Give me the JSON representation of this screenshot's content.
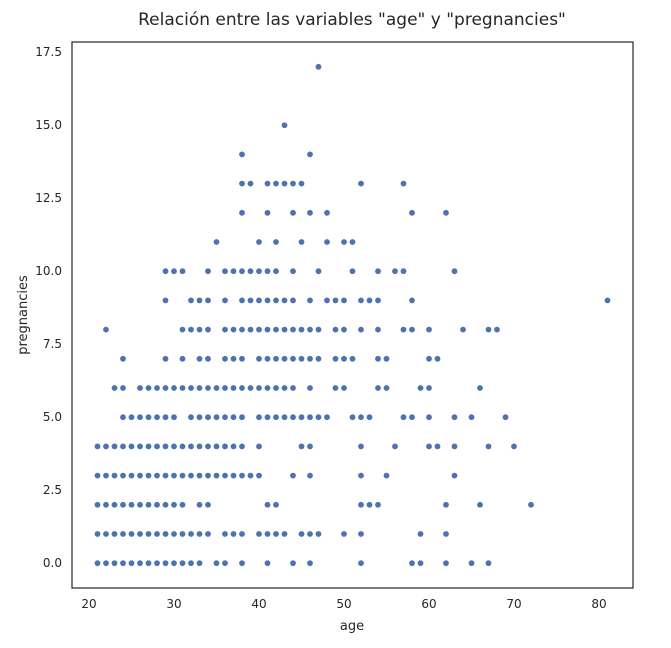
{
  "chart_data": {
    "type": "scatter",
    "title": "Relación entre las variables \"age\" y \"pregnancies\"",
    "xlabel": "age",
    "ylabel": "pregnancies",
    "xlim": [
      18,
      84
    ],
    "ylim": [
      -0.85,
      17.85
    ],
    "xticks": [
      20,
      30,
      40,
      50,
      60,
      70,
      80
    ],
    "xtick_labels": [
      "20",
      "30",
      "40",
      "50",
      "60",
      "70",
      "80"
    ],
    "yticks": [
      0,
      2.5,
      5,
      7.5,
      10,
      12.5,
      15,
      17.5
    ],
    "ytick_labels": [
      "0.0",
      "2.5",
      "5.0",
      "7.5",
      "10.0",
      "12.5",
      "15.0",
      "17.5"
    ],
    "grid": false,
    "marker_color": "#4c72b0",
    "points": [
      [
        21,
        0
      ],
      [
        22,
        0
      ],
      [
        23,
        0
      ],
      [
        24,
        0
      ],
      [
        25,
        0
      ],
      [
        26,
        0
      ],
      [
        27,
        0
      ],
      [
        28,
        0
      ],
      [
        29,
        0
      ],
      [
        30,
        0
      ],
      [
        31,
        0
      ],
      [
        32,
        0
      ],
      [
        33,
        0
      ],
      [
        35,
        0
      ],
      [
        36,
        0
      ],
      [
        38,
        0
      ],
      [
        41,
        0
      ],
      [
        44,
        0
      ],
      [
        46,
        0
      ],
      [
        52,
        0
      ],
      [
        58,
        0
      ],
      [
        59,
        0
      ],
      [
        62,
        0
      ],
      [
        65,
        0
      ],
      [
        67,
        0
      ],
      [
        21,
        1
      ],
      [
        22,
        1
      ],
      [
        23,
        1
      ],
      [
        24,
        1
      ],
      [
        25,
        1
      ],
      [
        26,
        1
      ],
      [
        27,
        1
      ],
      [
        28,
        1
      ],
      [
        29,
        1
      ],
      [
        30,
        1
      ],
      [
        31,
        1
      ],
      [
        32,
        1
      ],
      [
        33,
        1
      ],
      [
        34,
        1
      ],
      [
        36,
        1
      ],
      [
        37,
        1
      ],
      [
        38,
        1
      ],
      [
        40,
        1
      ],
      [
        41,
        1
      ],
      [
        42,
        1
      ],
      [
        43,
        1
      ],
      [
        45,
        1
      ],
      [
        46,
        1
      ],
      [
        47,
        1
      ],
      [
        50,
        1
      ],
      [
        52,
        1
      ],
      [
        59,
        1
      ],
      [
        62,
        1
      ],
      [
        21,
        2
      ],
      [
        22,
        2
      ],
      [
        23,
        2
      ],
      [
        24,
        2
      ],
      [
        25,
        2
      ],
      [
        26,
        2
      ],
      [
        27,
        2
      ],
      [
        28,
        2
      ],
      [
        29,
        2
      ],
      [
        30,
        2
      ],
      [
        31,
        2
      ],
      [
        33,
        2
      ],
      [
        34,
        2
      ],
      [
        41,
        2
      ],
      [
        42,
        2
      ],
      [
        52,
        2
      ],
      [
        53,
        2
      ],
      [
        54,
        2
      ],
      [
        62,
        2
      ],
      [
        66,
        2
      ],
      [
        72,
        2
      ],
      [
        21,
        3
      ],
      [
        22,
        3
      ],
      [
        23,
        3
      ],
      [
        24,
        3
      ],
      [
        25,
        3
      ],
      [
        26,
        3
      ],
      [
        27,
        3
      ],
      [
        28,
        3
      ],
      [
        29,
        3
      ],
      [
        30,
        3
      ],
      [
        31,
        3
      ],
      [
        32,
        3
      ],
      [
        33,
        3
      ],
      [
        34,
        3
      ],
      [
        35,
        3
      ],
      [
        36,
        3
      ],
      [
        37,
        3
      ],
      [
        38,
        3
      ],
      [
        39,
        3
      ],
      [
        40,
        3
      ],
      [
        44,
        3
      ],
      [
        46,
        3
      ],
      [
        52,
        3
      ],
      [
        55,
        3
      ],
      [
        63,
        3
      ],
      [
        21,
        4
      ],
      [
        22,
        4
      ],
      [
        23,
        4
      ],
      [
        24,
        4
      ],
      [
        25,
        4
      ],
      [
        26,
        4
      ],
      [
        27,
        4
      ],
      [
        28,
        4
      ],
      [
        29,
        4
      ],
      [
        30,
        4
      ],
      [
        31,
        4
      ],
      [
        32,
        4
      ],
      [
        33,
        4
      ],
      [
        34,
        4
      ],
      [
        35,
        4
      ],
      [
        36,
        4
      ],
      [
        37,
        4
      ],
      [
        38,
        4
      ],
      [
        40,
        4
      ],
      [
        45,
        4
      ],
      [
        46,
        4
      ],
      [
        52,
        4
      ],
      [
        56,
        4
      ],
      [
        60,
        4
      ],
      [
        61,
        4
      ],
      [
        63,
        4
      ],
      [
        67,
        4
      ],
      [
        70,
        4
      ],
      [
        24,
        5
      ],
      [
        25,
        5
      ],
      [
        26,
        5
      ],
      [
        27,
        5
      ],
      [
        28,
        5
      ],
      [
        29,
        5
      ],
      [
        30,
        5
      ],
      [
        32,
        5
      ],
      [
        33,
        5
      ],
      [
        34,
        5
      ],
      [
        35,
        5
      ],
      [
        36,
        5
      ],
      [
        37,
        5
      ],
      [
        38,
        5
      ],
      [
        40,
        5
      ],
      [
        41,
        5
      ],
      [
        42,
        5
      ],
      [
        43,
        5
      ],
      [
        44,
        5
      ],
      [
        45,
        5
      ],
      [
        46,
        5
      ],
      [
        47,
        5
      ],
      [
        48,
        5
      ],
      [
        51,
        5
      ],
      [
        52,
        5
      ],
      [
        53,
        5
      ],
      [
        57,
        5
      ],
      [
        58,
        5
      ],
      [
        60,
        5
      ],
      [
        63,
        5
      ],
      [
        65,
        5
      ],
      [
        69,
        5
      ],
      [
        23,
        6
      ],
      [
        24,
        6
      ],
      [
        26,
        6
      ],
      [
        27,
        6
      ],
      [
        28,
        6
      ],
      [
        29,
        6
      ],
      [
        30,
        6
      ],
      [
        31,
        6
      ],
      [
        32,
        6
      ],
      [
        33,
        6
      ],
      [
        34,
        6
      ],
      [
        35,
        6
      ],
      [
        36,
        6
      ],
      [
        37,
        6
      ],
      [
        38,
        6
      ],
      [
        39,
        6
      ],
      [
        40,
        6
      ],
      [
        41,
        6
      ],
      [
        42,
        6
      ],
      [
        43,
        6
      ],
      [
        44,
        6
      ],
      [
        46,
        6
      ],
      [
        49,
        6
      ],
      [
        50,
        6
      ],
      [
        54,
        6
      ],
      [
        55,
        6
      ],
      [
        59,
        6
      ],
      [
        60,
        6
      ],
      [
        66,
        6
      ],
      [
        24,
        7
      ],
      [
        29,
        7
      ],
      [
        31,
        7
      ],
      [
        33,
        7
      ],
      [
        34,
        7
      ],
      [
        36,
        7
      ],
      [
        37,
        7
      ],
      [
        38,
        7
      ],
      [
        40,
        7
      ],
      [
        41,
        7
      ],
      [
        42,
        7
      ],
      [
        43,
        7
      ],
      [
        44,
        7
      ],
      [
        45,
        7
      ],
      [
        46,
        7
      ],
      [
        47,
        7
      ],
      [
        49,
        7
      ],
      [
        50,
        7
      ],
      [
        51,
        7
      ],
      [
        54,
        7
      ],
      [
        55,
        7
      ],
      [
        60,
        7
      ],
      [
        61,
        7
      ],
      [
        22,
        8
      ],
      [
        31,
        8
      ],
      [
        32,
        8
      ],
      [
        33,
        8
      ],
      [
        34,
        8
      ],
      [
        36,
        8
      ],
      [
        37,
        8
      ],
      [
        38,
        8
      ],
      [
        39,
        8
      ],
      [
        40,
        8
      ],
      [
        41,
        8
      ],
      [
        42,
        8
      ],
      [
        43,
        8
      ],
      [
        44,
        8
      ],
      [
        45,
        8
      ],
      [
        46,
        8
      ],
      [
        47,
        8
      ],
      [
        49,
        8
      ],
      [
        50,
        8
      ],
      [
        52,
        8
      ],
      [
        54,
        8
      ],
      [
        57,
        8
      ],
      [
        58,
        8
      ],
      [
        60,
        8
      ],
      [
        64,
        8
      ],
      [
        67,
        8
      ],
      [
        68,
        8
      ],
      [
        29,
        9
      ],
      [
        32,
        9
      ],
      [
        33,
        9
      ],
      [
        34,
        9
      ],
      [
        36,
        9
      ],
      [
        38,
        9
      ],
      [
        39,
        9
      ],
      [
        40,
        9
      ],
      [
        41,
        9
      ],
      [
        42,
        9
      ],
      [
        43,
        9
      ],
      [
        44,
        9
      ],
      [
        46,
        9
      ],
      [
        48,
        9
      ],
      [
        49,
        9
      ],
      [
        50,
        9
      ],
      [
        52,
        9
      ],
      [
        53,
        9
      ],
      [
        54,
        9
      ],
      [
        58,
        9
      ],
      [
        81,
        9
      ],
      [
        29,
        10
      ],
      [
        30,
        10
      ],
      [
        31,
        10
      ],
      [
        34,
        10
      ],
      [
        36,
        10
      ],
      [
        37,
        10
      ],
      [
        38,
        10
      ],
      [
        39,
        10
      ],
      [
        40,
        10
      ],
      [
        41,
        10
      ],
      [
        42,
        10
      ],
      [
        44,
        10
      ],
      [
        47,
        10
      ],
      [
        51,
        10
      ],
      [
        54,
        10
      ],
      [
        56,
        10
      ],
      [
        57,
        10
      ],
      [
        63,
        10
      ],
      [
        35,
        11
      ],
      [
        40,
        11
      ],
      [
        42,
        11
      ],
      [
        45,
        11
      ],
      [
        48,
        11
      ],
      [
        50,
        11
      ],
      [
        51,
        11
      ],
      [
        38,
        12
      ],
      [
        41,
        12
      ],
      [
        44,
        12
      ],
      [
        46,
        12
      ],
      [
        48,
        12
      ],
      [
        58,
        12
      ],
      [
        62,
        12
      ],
      [
        38,
        13
      ],
      [
        39,
        13
      ],
      [
        41,
        13
      ],
      [
        42,
        13
      ],
      [
        43,
        13
      ],
      [
        44,
        13
      ],
      [
        45,
        13
      ],
      [
        52,
        13
      ],
      [
        57,
        13
      ],
      [
        38,
        14
      ],
      [
        46,
        14
      ],
      [
        43,
        15
      ],
      [
        47,
        17
      ]
    ]
  }
}
